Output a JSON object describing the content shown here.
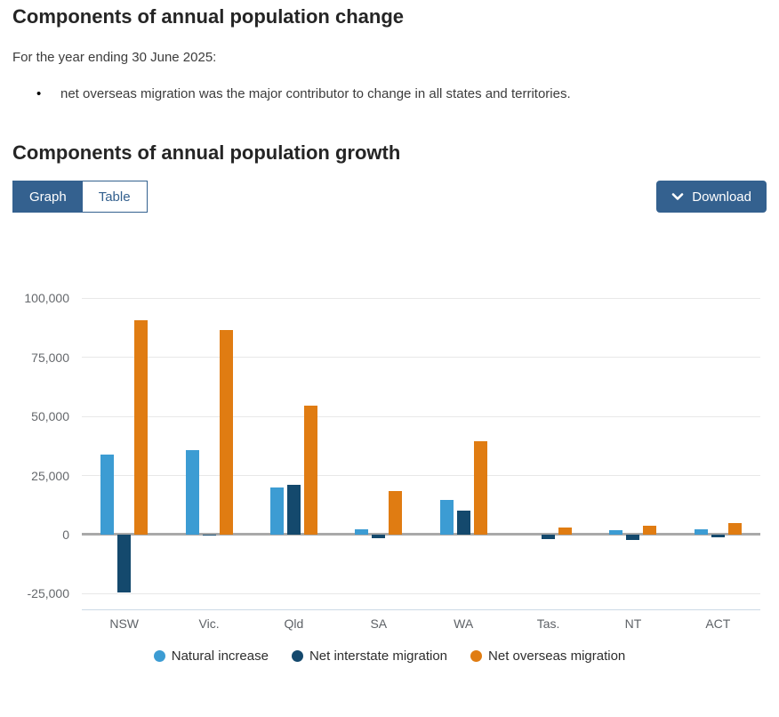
{
  "page": {
    "title": "Components of annual population change",
    "intro": "For the year ending 30 June 2025:",
    "bullets": [
      "net overseas migration was the major contributor to change in all states and territories."
    ],
    "section_title": "Components of annual population growth"
  },
  "toolbar": {
    "view_toggle": [
      {
        "label": "Graph",
        "active": true
      },
      {
        "label": "Table",
        "active": false
      }
    ],
    "download_label": "Download",
    "download_icon": "chevron-down"
  },
  "colors": {
    "accent_blue": "#34618f",
    "natural_increase": "#3c9cd3",
    "net_interstate_migration": "#14496d",
    "net_overseas_migration": "#e07c12",
    "zero_line_grey": "#a9a9a9",
    "gridline_grey": "#e8e8e8"
  },
  "chart_data": {
    "type": "bar",
    "title": "Components of annual population growth",
    "categories": [
      "NSW",
      "Vic.",
      "Qld",
      "SA",
      "WA",
      "Tas.",
      "NT",
      "ACT"
    ],
    "series": [
      {
        "name": "Natural increase",
        "color": "#3c9cd3",
        "values": [
          34000,
          35800,
          20000,
          2400,
          14500,
          100,
          1900,
          2400
        ]
      },
      {
        "name": "Net interstate migration",
        "color": "#14496d",
        "values": [
          -24600,
          -400,
          21200,
          -1500,
          10100,
          -1900,
          -2200,
          -1200
        ]
      },
      {
        "name": "Net overseas migration",
        "color": "#e07c12",
        "values": [
          90600,
          86500,
          54500,
          18300,
          39500,
          2900,
          3600,
          5000
        ]
      }
    ],
    "yticks": [
      100000,
      75000,
      50000,
      25000,
      0,
      -25000
    ],
    "ytick_labels": [
      "100,000",
      "75,000",
      "50,000",
      "25,000",
      "0",
      "-25,000"
    ],
    "ylim": [
      -32000,
      107500
    ],
    "xlabel": "",
    "ylabel": "",
    "grid": true,
    "legend_position": "bottom"
  }
}
